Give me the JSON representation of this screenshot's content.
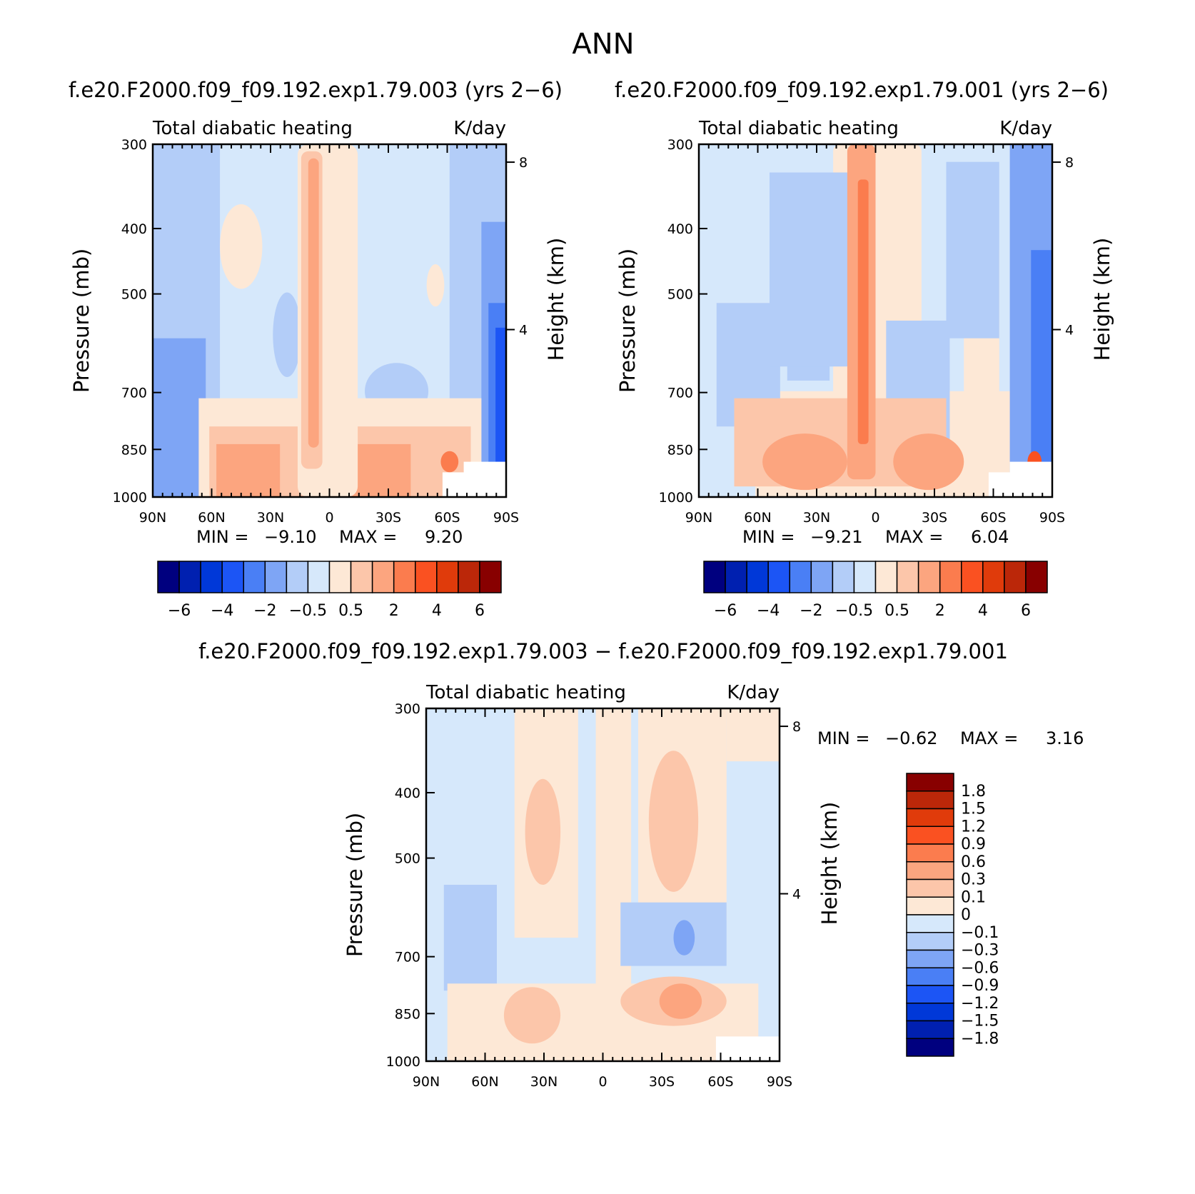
{
  "figure": {
    "title": "ANN",
    "diff_title": "f.e20.F2000.f09_f09.192.exp1.79.003 − f.e20.F2000.f09_f09.192.exp1.79.001"
  },
  "colors": {
    "full_scale": [
      "#00007f",
      "#0020b0",
      "#0038d8",
      "#1c55f5",
      "#4a7ff5",
      "#7ea5f5",
      "#b3cdf8",
      "#d6e8fb",
      "#fde8d6",
      "#fcc6aa",
      "#fca57f",
      "#fb7c4e",
      "#fa5121",
      "#e03b0b",
      "#bb2709",
      "#880000"
    ],
    "diff_scale": [
      "#00007f",
      "#0020b0",
      "#0038d8",
      "#1c55f5",
      "#4a7ff5",
      "#7ea5f5",
      "#b3cdf8",
      "#d6e8fb",
      "#fde8d6",
      "#fcc6aa",
      "#fca57f",
      "#fb7c4e",
      "#fa5121",
      "#e03b0b",
      "#bb2709",
      "#880000"
    ]
  },
  "chart_data": [
    {
      "type": "heatmap",
      "title": "f.e20.F2000.f09_f09.192.exp1.79.003 (yrs 2−6)",
      "left_label": "Total diabatic heating",
      "right_label": "K/day",
      "ylabel": "Pressure (mb)",
      "ylabel_right": "Height (km)",
      "x_ticks": [
        "90N",
        "60N",
        "30N",
        "0",
        "30S",
        "60S",
        "90S"
      ],
      "y_ticks": [
        "300",
        "400",
        "500",
        "700",
        "850",
        "1000"
      ],
      "y_ticks_right": [
        "8",
        "4"
      ],
      "ylim": [
        1000,
        300
      ],
      "stats": {
        "min_label": "MIN =",
        "min": "−9.10",
        "max_label": "MAX =",
        "max": "9.20"
      },
      "colorbar_labels": [
        "−6",
        "−4",
        "−2",
        "−0.5",
        "0.5",
        "2",
        "4",
        "6"
      ]
    },
    {
      "type": "heatmap",
      "title": "f.e20.F2000.f09_f09.192.exp1.79.001 (yrs 2−6)",
      "left_label": "Total diabatic heating",
      "right_label": "K/day",
      "ylabel": "Pressure (mb)",
      "ylabel_right": "Height (km)",
      "x_ticks": [
        "90N",
        "60N",
        "30N",
        "0",
        "30S",
        "60S",
        "90S"
      ],
      "y_ticks": [
        "300",
        "400",
        "500",
        "700",
        "850",
        "1000"
      ],
      "y_ticks_right": [
        "8",
        "4"
      ],
      "ylim": [
        1000,
        300
      ],
      "stats": {
        "min_label": "MIN =",
        "min": "−9.21",
        "max_label": "MAX =",
        "max": "6.04"
      },
      "colorbar_labels": [
        "−6",
        "−4",
        "−2",
        "−0.5",
        "0.5",
        "2",
        "4",
        "6"
      ]
    },
    {
      "type": "heatmap",
      "title": "",
      "left_label": "Total diabatic heating",
      "right_label": "K/day",
      "ylabel": "Pressure (mb)",
      "ylabel_right": "Height (km)",
      "x_ticks": [
        "90N",
        "60N",
        "30N",
        "0",
        "30S",
        "60S",
        "90S"
      ],
      "y_ticks": [
        "300",
        "400",
        "500",
        "700",
        "850",
        "1000"
      ],
      "y_ticks_right": [
        "8",
        "4"
      ],
      "ylim": [
        1000,
        300
      ],
      "stats": {
        "min_label": "MIN =",
        "min": "−0.62",
        "max_label": "MAX =",
        "max": "3.16"
      },
      "colorbar_labels": [
        "1.8",
        "1.5",
        "1.2",
        "0.9",
        "0.6",
        "0.3",
        "0.1",
        "0",
        "−0.1",
        "−0.3",
        "−0.6",
        "−0.9",
        "−1.2",
        "−1.5",
        "−1.8"
      ]
    }
  ]
}
